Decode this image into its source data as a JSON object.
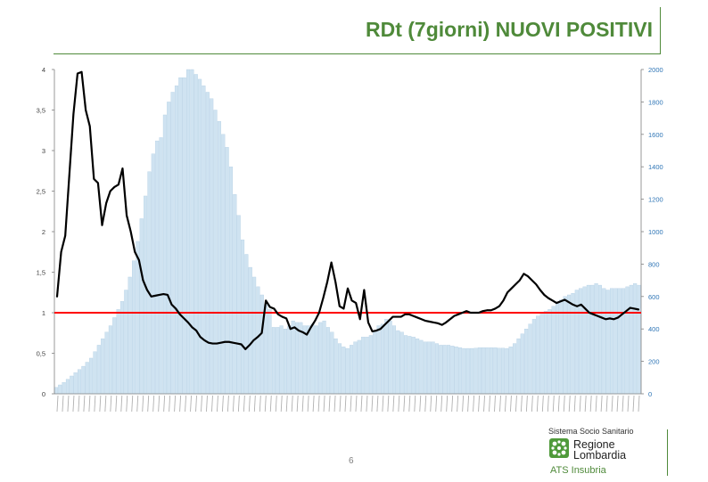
{
  "slide": {
    "title": "RDt (7giorni) NUOVI POSITIVI",
    "page_number": "6"
  },
  "footer": {
    "line1": "Sistema Socio Sanitario",
    "region_line1": "Regione",
    "region_line2": "Lombardia",
    "agency": "ATS Insubria",
    "logo_icon": "regione-lombardia-rose-icon"
  },
  "colors": {
    "title": "#4f8a3a",
    "bars": "#cfe3f1",
    "bar_edge": "#a9c8e0",
    "line": "#000000",
    "threshold": "#ff0000",
    "right_axis_text": "#2e75b6"
  },
  "chart_data": {
    "type": "bar+line",
    "x_range": [
      "03/2020",
      "09/2021"
    ],
    "y_left": {
      "ylim": [
        0,
        4
      ],
      "ticks": [
        "0",
        "0,5",
        "1",
        "1,5",
        "2",
        "2,5",
        "3",
        "3,5",
        "4"
      ]
    },
    "y_right": {
      "ylim": [
        0,
        2000
      ],
      "ticks": [
        "0",
        "200",
        "400",
        "600",
        "800",
        "1000",
        "1200",
        "1400",
        "1600",
        "1800",
        "2000"
      ]
    },
    "threshold": 1,
    "bar_series": {
      "axis": "right",
      "values": [
        40,
        55,
        70,
        90,
        110,
        130,
        150,
        170,
        195,
        220,
        260,
        300,
        340,
        380,
        420,
        470,
        520,
        570,
        640,
        720,
        820,
        940,
        1080,
        1220,
        1370,
        1480,
        1560,
        1580,
        1720,
        1800,
        1860,
        1900,
        1950,
        1950,
        2000,
        2000,
        1970,
        1940,
        1900,
        1860,
        1820,
        1750,
        1680,
        1600,
        1520,
        1400,
        1230,
        1100,
        950,
        860,
        780,
        720,
        660,
        610,
        550,
        520,
        410,
        410,
        420,
        400,
        420,
        450,
        440,
        440,
        420,
        420,
        430,
        420,
        440,
        450,
        410,
        380,
        340,
        310,
        290,
        280,
        300,
        320,
        330,
        350,
        350,
        360,
        390,
        420,
        430,
        460,
        450,
        420,
        390,
        380,
        360,
        355,
        350,
        340,
        330,
        320,
        320,
        320,
        310,
        300,
        300,
        300,
        295,
        290,
        285,
        280,
        280,
        280,
        282,
        285,
        285,
        285,
        285,
        285,
        282,
        282,
        280,
        290,
        310,
        340,
        370,
        400,
        430,
        460,
        480,
        500,
        510,
        520,
        540,
        560,
        580,
        600,
        610,
        620,
        640,
        650,
        660,
        670,
        670,
        680,
        670,
        650,
        640,
        650,
        650,
        650,
        650,
        660,
        670,
        680,
        670
      ]
    },
    "line_series": {
      "axis": "left",
      "values": [
        1.2,
        1.75,
        1.95,
        2.7,
        3.45,
        3.95,
        3.97,
        3.5,
        3.3,
        2.65,
        2.6,
        2.08,
        2.35,
        2.5,
        2.55,
        2.58,
        2.78,
        2.2,
        2.0,
        1.75,
        1.65,
        1.4,
        1.28,
        1.2,
        1.21,
        1.22,
        1.23,
        1.22,
        1.1,
        1.05,
        0.98,
        0.93,
        0.88,
        0.82,
        0.78,
        0.7,
        0.66,
        0.63,
        0.62,
        0.62,
        0.63,
        0.64,
        0.64,
        0.63,
        0.62,
        0.61,
        0.55,
        0.6,
        0.66,
        0.7,
        0.75,
        1.15,
        1.07,
        1.05,
        0.98,
        0.95,
        0.93,
        0.8,
        0.82,
        0.78,
        0.76,
        0.73,
        0.82,
        0.9,
        1.0,
        1.18,
        1.38,
        1.62,
        1.38,
        1.08,
        1.05,
        1.3,
        1.15,
        1.12,
        0.92,
        1.28,
        0.88,
        0.77,
        0.78,
        0.8,
        0.85,
        0.9,
        0.95,
        0.95,
        0.95,
        0.98,
        0.98,
        0.96,
        0.94,
        0.92,
        0.9,
        0.89,
        0.88,
        0.87,
        0.85,
        0.88,
        0.92,
        0.96,
        0.98,
        1.0,
        1.02,
        1.0,
        1.0,
        1.0,
        1.02,
        1.03,
        1.03,
        1.05,
        1.08,
        1.15,
        1.25,
        1.3,
        1.35,
        1.4,
        1.48,
        1.45,
        1.4,
        1.35,
        1.28,
        1.22,
        1.18,
        1.15,
        1.12,
        1.14,
        1.16,
        1.13,
        1.1,
        1.08,
        1.1,
        1.05,
        1.0,
        0.98,
        0.96,
        0.94,
        0.92,
        0.93,
        0.92,
        0.94,
        0.98,
        1.02,
        1.06,
        1.05,
        1.04
      ]
    }
  }
}
